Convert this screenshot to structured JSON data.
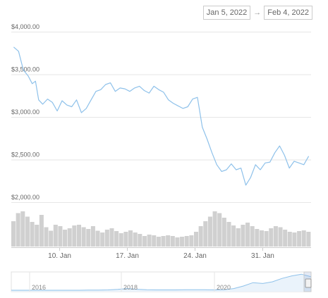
{
  "date_range": {
    "start": "Jan 5, 2022",
    "arrow": "→",
    "end": "Feb 4, 2022"
  },
  "chart_data": {
    "type": "line",
    "title": "",
    "xlabel": "",
    "ylabel": "",
    "ylim": [
      2000,
      4000
    ],
    "yticks": [
      {
        "value": 4000,
        "label": "$4,000.00"
      },
      {
        "value": 3500,
        "label": "$3,500.00"
      },
      {
        "value": 3000,
        "label": "$3,000.00"
      },
      {
        "value": 2500,
        "label": "$2,500.00"
      },
      {
        "value": 2000,
        "label": "$2,000.00"
      }
    ],
    "x_range": [
      "2022-01-05",
      "2022-02-04"
    ],
    "xticks": [
      {
        "date": "2022-01-10",
        "label": "10. Jan"
      },
      {
        "date": "2022-01-17",
        "label": "17. Jan"
      },
      {
        "date": "2022-01-24",
        "label": "24. Jan"
      },
      {
        "date": "2022-01-31",
        "label": "31. Jan"
      }
    ],
    "grid": true,
    "line_color": "#8ec1ea",
    "series": [
      {
        "points": [
          [
            "2022-01-05",
            3820
          ],
          [
            "2022-01-05",
            3770
          ],
          [
            "2022-01-06",
            3550
          ],
          [
            "2022-01-06",
            3480
          ],
          [
            "2022-01-07",
            3390
          ],
          [
            "2022-01-07",
            3420
          ],
          [
            "2022-01-07",
            3200
          ],
          [
            "2022-01-08",
            3150
          ],
          [
            "2022-01-08",
            3210
          ],
          [
            "2022-01-09",
            3170
          ],
          [
            "2022-01-09",
            3070
          ],
          [
            "2022-01-10",
            3190
          ],
          [
            "2022-01-10",
            3140
          ],
          [
            "2022-01-11",
            3120
          ],
          [
            "2022-01-11",
            3200
          ],
          [
            "2022-01-12",
            3050
          ],
          [
            "2022-01-12",
            3100
          ],
          [
            "2022-01-13",
            3200
          ],
          [
            "2022-01-13",
            3300
          ],
          [
            "2022-01-14",
            3320
          ],
          [
            "2022-01-14",
            3380
          ],
          [
            "2022-01-15",
            3400
          ],
          [
            "2022-01-15",
            3300
          ],
          [
            "2022-01-16",
            3340
          ],
          [
            "2022-01-16",
            3330
          ],
          [
            "2022-01-17",
            3300
          ],
          [
            "2022-01-17",
            3340
          ],
          [
            "2022-01-18",
            3360
          ],
          [
            "2022-01-18",
            3310
          ],
          [
            "2022-01-19",
            3280
          ],
          [
            "2022-01-19",
            3360
          ],
          [
            "2022-01-20",
            3320
          ],
          [
            "2022-01-20",
            3290
          ],
          [
            "2022-01-21",
            3200
          ],
          [
            "2022-01-21",
            3160
          ],
          [
            "2022-01-22",
            3130
          ],
          [
            "2022-01-22",
            3100
          ],
          [
            "2022-01-23",
            3120
          ],
          [
            "2022-01-23",
            3210
          ],
          [
            "2022-01-24",
            3230
          ],
          [
            "2022-01-24",
            2880
          ],
          [
            "2022-01-25",
            2740
          ],
          [
            "2022-01-25",
            2580
          ],
          [
            "2022-01-26",
            2440
          ],
          [
            "2022-01-26",
            2360
          ],
          [
            "2022-01-27",
            2380
          ],
          [
            "2022-01-27",
            2450
          ],
          [
            "2022-01-28",
            2380
          ],
          [
            "2022-01-28",
            2400
          ],
          [
            "2022-01-29",
            2200
          ],
          [
            "2022-01-29",
            2290
          ],
          [
            "2022-01-30",
            2440
          ],
          [
            "2022-01-30",
            2380
          ],
          [
            "2022-01-31",
            2460
          ],
          [
            "2022-01-31",
            2470
          ],
          [
            "2022-02-01",
            2580
          ],
          [
            "2022-02-01",
            2660
          ],
          [
            "2022-02-02",
            2550
          ],
          [
            "2022-02-02",
            2400
          ],
          [
            "2022-02-03",
            2480
          ],
          [
            "2022-02-03",
            2460
          ],
          [
            "2022-02-04",
            2440
          ],
          [
            "2022-02-04",
            2540
          ]
        ]
      }
    ],
    "volume": {
      "color": "#d0d0d0",
      "values": [
        0.72,
        0.95,
        1.0,
        0.85,
        0.7,
        0.62,
        0.9,
        0.55,
        0.45,
        0.62,
        0.58,
        0.48,
        0.52,
        0.6,
        0.62,
        0.55,
        0.5,
        0.58,
        0.45,
        0.4,
        0.48,
        0.52,
        0.44,
        0.38,
        0.42,
        0.46,
        0.4,
        0.36,
        0.3,
        0.34,
        0.32,
        0.28,
        0.3,
        0.32,
        0.3,
        0.26,
        0.28,
        0.3,
        0.32,
        0.42,
        0.58,
        0.72,
        0.85,
        1.0,
        0.95,
        0.82,
        0.7,
        0.6,
        0.52,
        0.62,
        0.68,
        0.58,
        0.5,
        0.46,
        0.44,
        0.52,
        0.58,
        0.55,
        0.48,
        0.42,
        0.4,
        0.44,
        0.46,
        0.42
      ]
    },
    "navigator": {
      "xticks": [
        "2016",
        "2018",
        "2020"
      ],
      "values": [
        0.0,
        0.0,
        0.0,
        0.0,
        0.0,
        0.0,
        0.0,
        0.0,
        0.01,
        0.01,
        0.02,
        0.05,
        0.1,
        0.06,
        0.03,
        0.02,
        0.02,
        0.02,
        0.03,
        0.03,
        0.03,
        0.02,
        0.03,
        0.1,
        0.25,
        0.45,
        0.4,
        0.5,
        0.7,
        0.85,
        0.95,
        0.8
      ]
    }
  }
}
